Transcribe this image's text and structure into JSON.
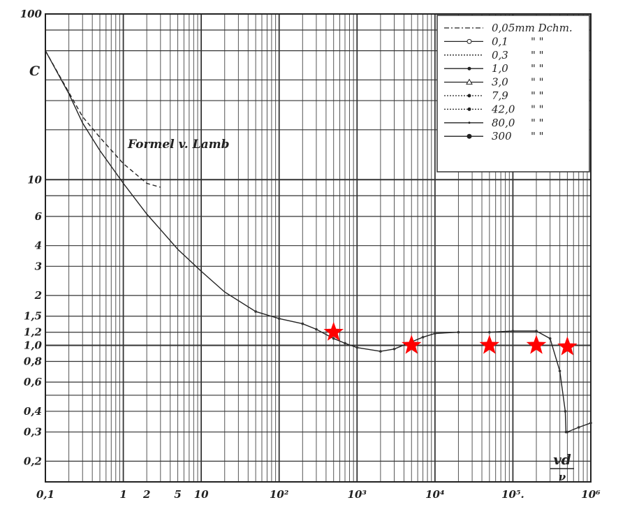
{
  "chart_data": {
    "type": "line",
    "x_scale": "log",
    "y_scale": "log",
    "xlim": [
      0.1,
      1000000
    ],
    "ylim": [
      0.15,
      100
    ],
    "grid": true,
    "ylabel": "C",
    "xlabel": "vd/ν",
    "xlabel_num": "vd",
    "xlabel_den": "ν",
    "legend_position": "top-right",
    "x_ticks": [
      {
        "v": 0.1,
        "label": "0,1"
      },
      {
        "v": 1,
        "label": "1"
      },
      {
        "v": 2,
        "label": "2"
      },
      {
        "v": 5,
        "label": "5"
      },
      {
        "v": 10,
        "label": "10"
      },
      {
        "v": 100,
        "label": "10²"
      },
      {
        "v": 1000,
        "label": "10³"
      },
      {
        "v": 10000,
        "label": "10⁴"
      },
      {
        "v": 100000,
        "label": "10⁵."
      },
      {
        "v": 1000000,
        "label": "10⁶"
      }
    ],
    "y_ticks": [
      {
        "v": 100,
        "label": "100"
      },
      {
        "v": 10,
        "label": "10"
      },
      {
        "v": 6,
        "label": "6"
      },
      {
        "v": 4,
        "label": "4"
      },
      {
        "v": 3,
        "label": "3"
      },
      {
        "v": 2,
        "label": "2"
      },
      {
        "v": 1.5,
        "label": "1,5"
      },
      {
        "v": 1.2,
        "label": "1,2"
      },
      {
        "v": 1.0,
        "label": "1,0"
      },
      {
        "v": 0.8,
        "label": "0,8"
      },
      {
        "v": 0.6,
        "label": "0,6"
      },
      {
        "v": 0.4,
        "label": "0,4"
      },
      {
        "v": 0.3,
        "label": "0,3"
      },
      {
        "v": 0.2,
        "label": "0,2"
      }
    ],
    "legend": [
      {
        "line": "dashdot",
        "marker": "none",
        "label": "0,05mm Dchm."
      },
      {
        "line": "solid",
        "marker": "open",
        "label": "0,1",
        "ditto": "\"     \""
      },
      {
        "line": "dotted",
        "marker": "none",
        "label": "0,3",
        "ditto": "\"     \""
      },
      {
        "line": "solid",
        "marker": "filled",
        "label": "1,0",
        "ditto": "\"     \""
      },
      {
        "line": "solid",
        "marker": "triangle",
        "label": "3,0",
        "ditto": "\"     \""
      },
      {
        "line": "dotted",
        "marker": "filled",
        "label": "7,9",
        "ditto": "\"     \""
      },
      {
        "line": "dotted",
        "marker": "filled",
        "label": "42,0",
        "ditto": "\"     \""
      },
      {
        "line": "solid",
        "marker": "small",
        "label": "80,0",
        "ditto": "\"     \""
      },
      {
        "line": "solid",
        "marker": "filledbig",
        "label": "300",
        "ditto": "\"     \""
      }
    ],
    "annotation": "Formel v. Lamb",
    "series": [
      {
        "style": "measured",
        "x": [
          0.1,
          0.2,
          0.3,
          0.5,
          1,
          2,
          3,
          5,
          10,
          20,
          50,
          100,
          200,
          300,
          500,
          700,
          1000,
          2000,
          3000,
          5000,
          7000,
          10000,
          20000,
          50000,
          100000,
          200000,
          300000,
          400000,
          470000,
          480000,
          500000,
          700000,
          1000000
        ],
        "y": [
          60,
          33,
          22,
          15,
          9.5,
          6.2,
          5.0,
          3.8,
          2.8,
          2.1,
          1.6,
          1.45,
          1.35,
          1.25,
          1.1,
          1.03,
          0.97,
          0.92,
          0.95,
          1.05,
          1.12,
          1.18,
          1.2,
          1.2,
          1.22,
          1.22,
          1.1,
          0.7,
          0.4,
          0.3,
          0.3,
          0.32,
          0.34
        ]
      },
      {
        "style": "dashed",
        "x": [
          0.1,
          0.3,
          0.5,
          1,
          2,
          3
        ],
        "y": [
          60,
          24,
          18,
          12.5,
          9.5,
          9.0
        ]
      }
    ],
    "stars": {
      "color": "#ff0000",
      "points": [
        {
          "x": 500,
          "y": 1.2
        },
        {
          "x": 5000,
          "y": 1.0
        },
        {
          "x": 50000,
          "y": 1.0
        },
        {
          "x": 200000,
          "y": 1.0
        },
        {
          "x": 500000,
          "y": 0.98
        }
      ]
    }
  }
}
